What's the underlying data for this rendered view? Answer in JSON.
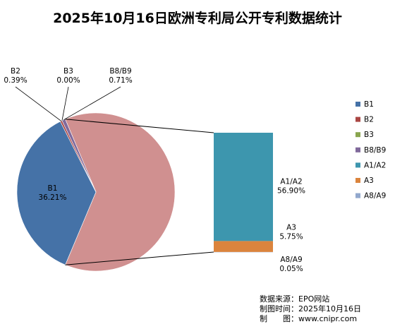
{
  "chart_data": {
    "type": "pie",
    "subtype": "pie-of-bar",
    "title": "2025年10月16日欧洲专利局公开专利数据统计",
    "slices": [
      {
        "name": "B1",
        "value": 36.21,
        "label": "36.21%",
        "color": "#4572A7"
      },
      {
        "name": "B2",
        "value": 0.39,
        "label": "0.39%",
        "color": "#AA4643"
      },
      {
        "name": "B3",
        "value": 0.0,
        "label": "0.00%",
        "color": "#89A54E"
      },
      {
        "name": "B8/B9",
        "value": 0.71,
        "label": "0.71%",
        "color": "#80699B"
      },
      {
        "name": "A1/A2",
        "value": 56.9,
        "label": "56.90%",
        "color": "#3D96AE"
      },
      {
        "name": "A3",
        "value": 5.75,
        "label": "5.75%",
        "color": "#DB843D"
      },
      {
        "name": "A8/A9",
        "value": 0.05,
        "label": "0.05%",
        "color": "#92A8CD"
      }
    ],
    "combined_slice_color": "#D09090",
    "bar_breakdown": [
      "A1/A2",
      "A3",
      "A8/A9"
    ],
    "legend_position": "right"
  },
  "footer": {
    "source": "数据来源：EPO网站",
    "date": "制图时间：2025年10月16日",
    "maker": "制　　图：www.cnipr.com"
  }
}
